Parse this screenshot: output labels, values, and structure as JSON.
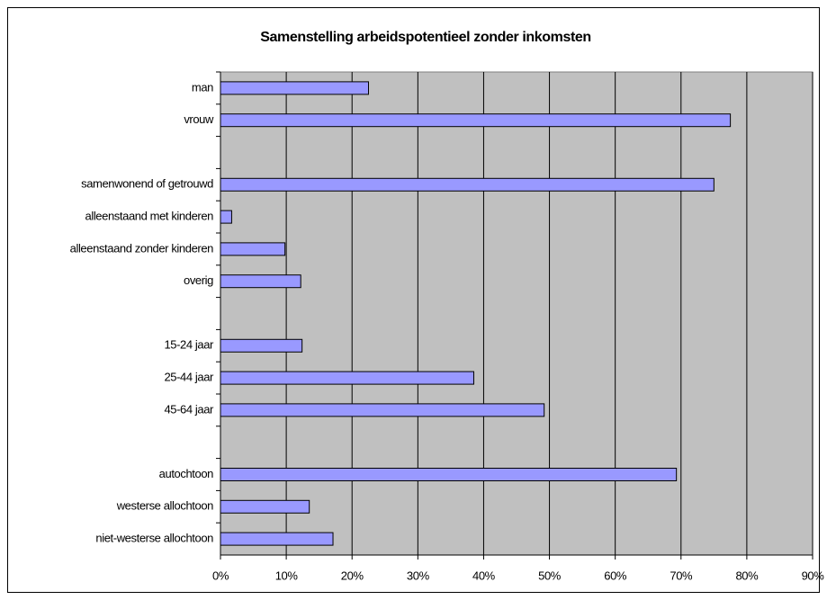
{
  "chart_data": {
    "type": "hbar",
    "title": "Samenstelling arbeidspotentieel zonder inkomsten",
    "categories": [
      "man",
      "vrouw",
      null,
      "samenwonend of getrouwd",
      "alleenstaand met kinderen",
      "alleenstaand zonder kinderen",
      "overig",
      null,
      "15-24 jaar",
      "25-44 jaar",
      "45-64 jaar",
      null,
      "autochtoon",
      "westerse allochtoon",
      "niet-westerse allochtoon"
    ],
    "values": [
      22.5,
      77.5,
      null,
      75,
      1.7,
      9.8,
      12.2,
      null,
      12.4,
      38.5,
      49.2,
      null,
      69.3,
      13.5,
      17.1
    ],
    "color": "#9999ff",
    "xlim": [
      0,
      90
    ],
    "xticks": [
      {
        "value": 0,
        "label": "0%"
      },
      {
        "value": 10,
        "label": "10%"
      },
      {
        "value": 20,
        "label": "20%"
      },
      {
        "value": 30,
        "label": "30%"
      },
      {
        "value": 40,
        "label": "40%"
      },
      {
        "value": 50,
        "label": "50%"
      },
      {
        "value": 60,
        "label": "60%"
      },
      {
        "value": 70,
        "label": "70%"
      },
      {
        "value": 80,
        "label": "80%"
      },
      {
        "value": 90,
        "label": "90%"
      }
    ],
    "grid": true
  }
}
